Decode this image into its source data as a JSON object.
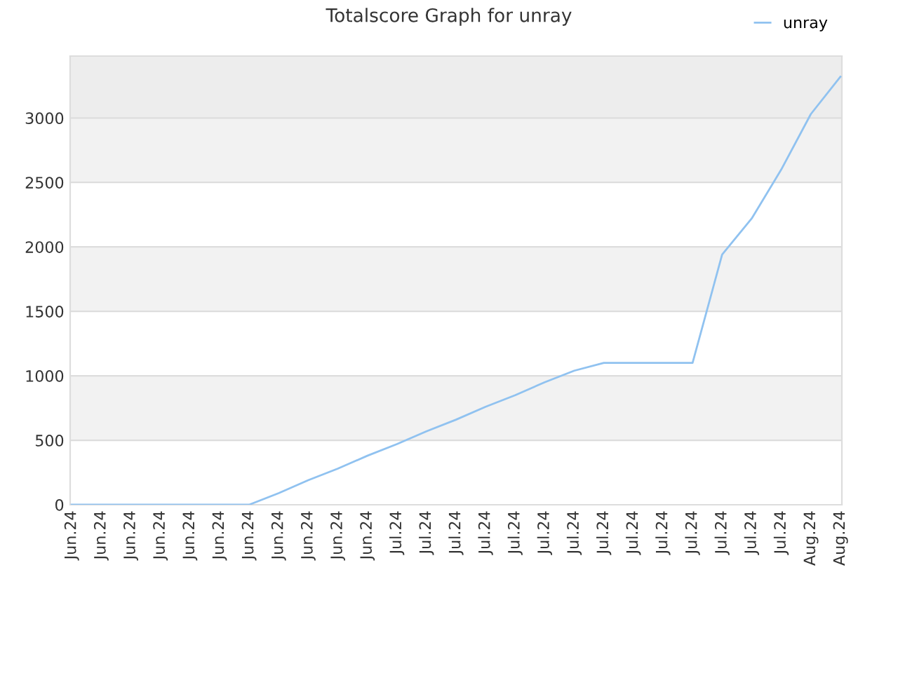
{
  "chart_data": {
    "type": "line",
    "title": "Totalscore Graph for unray",
    "categories": [
      "Jun.24",
      "Jun.24",
      "Jun.24",
      "Jun.24",
      "Jun.24",
      "Jun.24",
      "Jun.24",
      "Jun.24",
      "Jun.24",
      "Jun.24",
      "Jun.24",
      "Jul.24",
      "Jul.24",
      "Jul.24",
      "Jul.24",
      "Jul.24",
      "Jul.24",
      "Jul.24",
      "Jul.24",
      "Jul.24",
      "Jul.24",
      "Jul.24",
      "Jul.24",
      "Jul.24",
      "Jul.24",
      "Aug.24",
      "Aug.24"
    ],
    "series": [
      {
        "name": "unray",
        "color": "#90c2f0",
        "values": [
          0,
          0,
          0,
          0,
          0,
          0,
          0,
          90,
          190,
          280,
          380,
          470,
          570,
          660,
          760,
          850,
          950,
          1040,
          1100,
          1100,
          1100,
          1100,
          1940,
          2220,
          2600,
          3030,
          3320
        ]
      }
    ],
    "ylim": [
      0,
      3480
    ],
    "yticks": [
      0,
      500,
      1000,
      1500,
      2000,
      2500,
      3000
    ],
    "bands": [
      {
        "axis": "y",
        "from": 500,
        "to": 1000,
        "color": "#f2f2f2"
      },
      {
        "axis": "y",
        "from": 1500,
        "to": 2000,
        "color": "#f2f2f2"
      },
      {
        "axis": "y",
        "from": 2500,
        "to": 3000,
        "color": "#f2f2f2"
      },
      {
        "axis": "y",
        "from": 3000,
        "to": 3480,
        "color": "#ededed"
      }
    ],
    "grid": "y",
    "legend": "top right",
    "marker": "none",
    "line_style": "solid"
  }
}
